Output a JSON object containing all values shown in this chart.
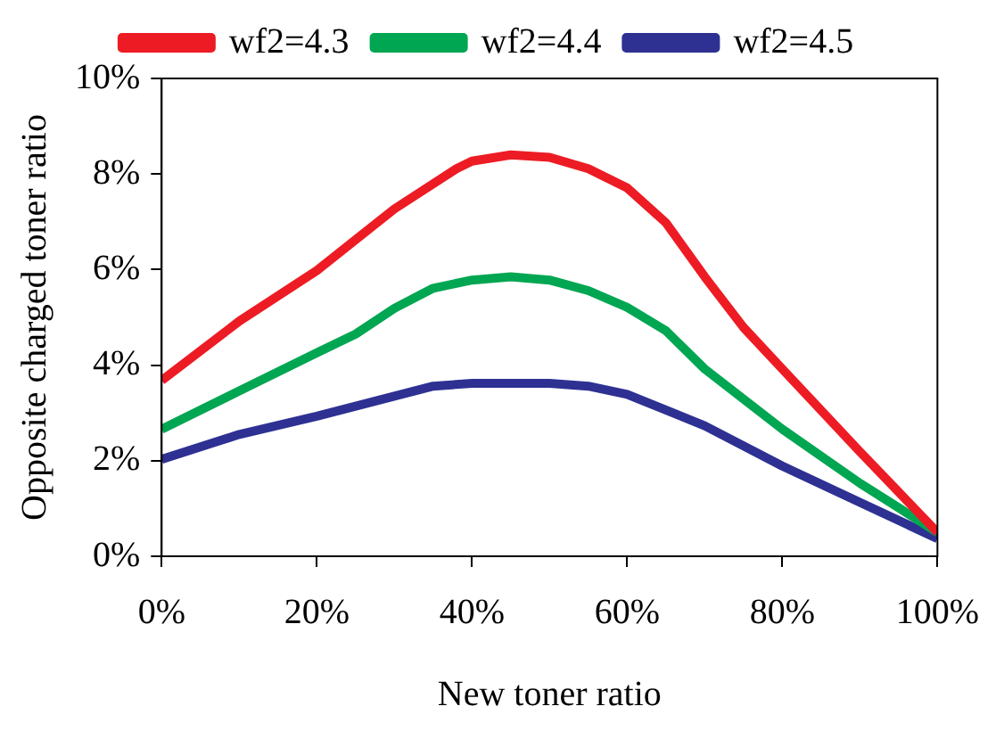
{
  "chart_data": {
    "type": "line",
    "xlabel": "New toner ratio",
    "ylabel": "Opposite charged toner ratio",
    "xlim": [
      0,
      100
    ],
    "xticks": [
      {
        "value": 0,
        "label": "0%"
      },
      {
        "value": 20,
        "label": "20%"
      },
      {
        "value": 40,
        "label": "40%"
      },
      {
        "value": 60,
        "label": "60%"
      },
      {
        "value": 80,
        "label": "80%"
      },
      {
        "value": 100,
        "label": "100%"
      }
    ],
    "ylim": [
      0,
      10
    ],
    "yticks": [
      {
        "value": 0,
        "label": "0%"
      },
      {
        "value": 2,
        "label": "2%"
      },
      {
        "value": 4,
        "label": "4%"
      },
      {
        "value": 6,
        "label": "6%"
      },
      {
        "value": 8,
        "label": "8%"
      },
      {
        "value": 10,
        "label": "10%"
      }
    ],
    "grid": false,
    "legend": "top",
    "marker": "none",
    "line_style": "solid",
    "series": [
      {
        "name": "wf2=4.3",
        "color": "#ed1c24",
        "x": [
          0,
          10,
          20,
          30,
          38,
          40,
          45,
          50,
          55,
          60,
          65,
          70,
          75,
          80,
          90,
          100
        ],
        "values": [
          3.68,
          4.92,
          5.98,
          7.27,
          8.11,
          8.27,
          8.4,
          8.35,
          8.11,
          7.71,
          6.98,
          5.85,
          4.79,
          3.92,
          2.19,
          0.5
        ]
      },
      {
        "name": "wf2=4.4",
        "color": "#00a651",
        "x": [
          0,
          10,
          20,
          25,
          30,
          35,
          40,
          45,
          50,
          55,
          60,
          65,
          70,
          80,
          90,
          100
        ],
        "values": [
          2.66,
          3.46,
          4.26,
          4.65,
          5.19,
          5.61,
          5.78,
          5.85,
          5.78,
          5.56,
          5.21,
          4.72,
          3.92,
          2.66,
          1.53,
          0.5
        ]
      },
      {
        "name": "wf2=4.5",
        "color": "#2e3192",
        "x": [
          0,
          10,
          20,
          30,
          35,
          40,
          45,
          50,
          55,
          60,
          70,
          80,
          90,
          100
        ],
        "values": [
          2.03,
          2.55,
          2.93,
          3.35,
          3.56,
          3.62,
          3.62,
          3.62,
          3.56,
          3.39,
          2.73,
          1.89,
          1.13,
          0.37
        ]
      }
    ]
  }
}
